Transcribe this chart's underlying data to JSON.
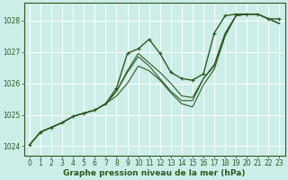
{
  "background_color": "#cceee8",
  "grid_color": "#ffffff",
  "line_color": "#2d5a1e",
  "xlabel": "Graphe pression niveau de la mer (hPa)",
  "xlim": [
    -0.5,
    23.5
  ],
  "ylim": [
    1023.7,
    1028.55
  ],
  "yticks": [
    1024,
    1025,
    1026,
    1027,
    1028
  ],
  "xticks": [
    0,
    1,
    2,
    3,
    4,
    5,
    6,
    7,
    8,
    9,
    10,
    11,
    12,
    13,
    14,
    15,
    16,
    17,
    18,
    19,
    20,
    21,
    22,
    23
  ],
  "series": [
    {
      "x": [
        0,
        1,
        2,
        3,
        4,
        5,
        6,
        7,
        8,
        9,
        10,
        11,
        12,
        13,
        14,
        15,
        16,
        17,
        18,
        19,
        20,
        21,
        22,
        23
      ],
      "y": [
        1024.05,
        1024.45,
        1024.6,
        1024.75,
        1024.95,
        1025.05,
        1025.15,
        1025.35,
        1025.85,
        1026.95,
        1027.1,
        1027.4,
        1026.95,
        1026.35,
        1026.15,
        1026.1,
        1026.3,
        1027.6,
        1028.15,
        1028.2,
        1028.2,
        1028.2,
        1028.05,
        1028.05
      ],
      "marker": true,
      "linewidth": 1.0
    },
    {
      "x": [
        0,
        1,
        2,
        3,
        4,
        5,
        6,
        7,
        8,
        9,
        10,
        11,
        12,
        13,
        14,
        15,
        16,
        17,
        18,
        19,
        20,
        21,
        22,
        23
      ],
      "y": [
        1024.05,
        1024.45,
        1024.6,
        1024.75,
        1024.95,
        1025.05,
        1025.15,
        1025.35,
        1025.75,
        1026.4,
        1026.95,
        1026.65,
        1026.35,
        1026.0,
        1025.6,
        1025.55,
        1026.15,
        1026.6,
        1027.6,
        1028.15,
        1028.2,
        1028.2,
        1028.05,
        1027.9
      ],
      "marker": false,
      "linewidth": 0.8
    },
    {
      "x": [
        0,
        1,
        2,
        3,
        4,
        5,
        6,
        7,
        8,
        9,
        10,
        11,
        12,
        13,
        14,
        15,
        16,
        17,
        18,
        19,
        20,
        21,
        22,
        23
      ],
      "y": [
        1024.05,
        1024.45,
        1024.6,
        1024.75,
        1024.95,
        1025.05,
        1025.15,
        1025.35,
        1025.75,
        1026.35,
        1026.85,
        1026.55,
        1026.15,
        1025.75,
        1025.45,
        1025.45,
        1026.15,
        1026.55,
        1027.55,
        1028.15,
        1028.2,
        1028.2,
        1028.05,
        1027.9
      ],
      "marker": false,
      "linewidth": 0.8
    },
    {
      "x": [
        0,
        1,
        2,
        3,
        4,
        5,
        6,
        7,
        8,
        9,
        10,
        11,
        12,
        13,
        14,
        15,
        16,
        17,
        18,
        19,
        20,
        21,
        22,
        23
      ],
      "y": [
        1024.05,
        1024.45,
        1024.6,
        1024.75,
        1024.95,
        1025.05,
        1025.15,
        1025.35,
        1025.6,
        1026.0,
        1026.55,
        1026.4,
        1026.1,
        1025.7,
        1025.35,
        1025.25,
        1025.95,
        1026.45,
        1027.5,
        1028.15,
        1028.2,
        1028.2,
        1028.05,
        1027.9
      ],
      "marker": false,
      "linewidth": 0.8
    }
  ],
  "title_color": "#2d5a1e",
  "tick_fontsize": 5.5,
  "xlabel_fontsize": 6.5,
  "spine_color": "#2d5a1e"
}
